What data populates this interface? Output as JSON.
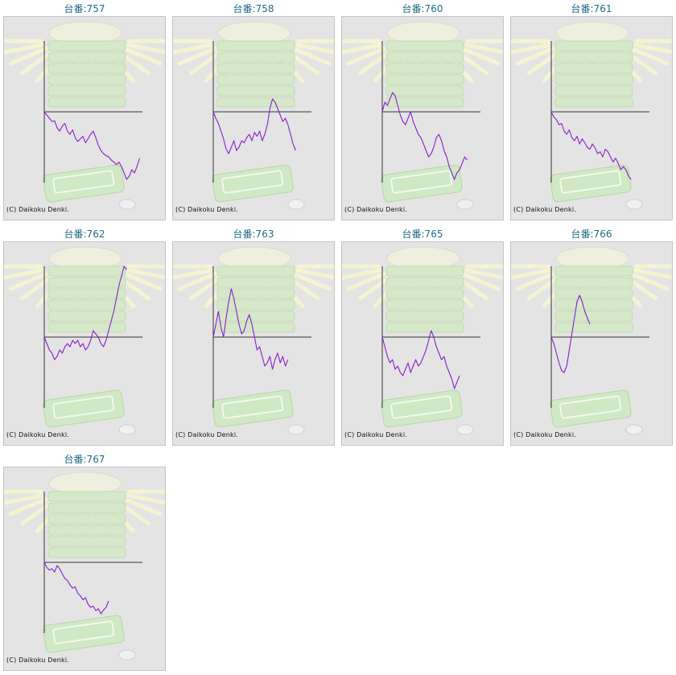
{
  "colors": {
    "line": "#8a1fd0",
    "axis": "#333333",
    "title": "#1f6a8a",
    "frame_bg": "#e4e4e4"
  },
  "copyright": "(C) Daikoku Denki.",
  "chart_data": [
    {
      "type": "line",
      "title": "台番:757",
      "series": [
        {
          "values": [
            0,
            -5,
            -10,
            -15,
            -14,
            -25,
            -30,
            -22,
            -18,
            -30,
            -35,
            -28,
            -40,
            -46,
            -42,
            -38,
            -48,
            -42,
            -35,
            -30,
            -40,
            -52,
            -60,
            -65,
            -68,
            -70,
            -75,
            -78,
            -82,
            -78,
            -85,
            -95,
            -105,
            -100,
            -90,
            -95,
            -85,
            -72
          ]
        }
      ]
    },
    {
      "type": "line",
      "title": "台番:758",
      "series": [
        {
          "values": [
            0,
            -10,
            -18,
            -30,
            -42,
            -58,
            -65,
            -55,
            -45,
            -60,
            -55,
            -45,
            -48,
            -40,
            -35,
            -45,
            -32,
            -38,
            -30,
            -45,
            -35,
            -20,
            5,
            20,
            15,
            5,
            -5,
            -15,
            -10,
            -20,
            -35,
            -50,
            -60
          ]
        }
      ]
    },
    {
      "type": "line",
      "title": "台番:760",
      "series": [
        {
          "values": [
            0,
            15,
            10,
            20,
            30,
            25,
            10,
            -5,
            -15,
            -20,
            -10,
            0,
            -15,
            -25,
            -35,
            -40,
            -50,
            -60,
            -70,
            -65,
            -55,
            -40,
            -35,
            -45,
            -60,
            -70,
            -85,
            -95,
            -105,
            -95,
            -90,
            -80,
            -70,
            -75
          ]
        }
      ]
    },
    {
      "type": "line",
      "title": "台番:761",
      "series": [
        {
          "values": [
            0,
            -8,
            -12,
            -20,
            -18,
            -30,
            -35,
            -28,
            -40,
            -45,
            -38,
            -50,
            -42,
            -48,
            -55,
            -58,
            -50,
            -56,
            -65,
            -62,
            -70,
            -58,
            -62,
            -70,
            -78,
            -72,
            -80,
            -90,
            -85,
            -90,
            -100,
            -105
          ]
        }
      ]
    },
    {
      "type": "line",
      "title": "台番:762",
      "series": [
        {
          "values": [
            0,
            -10,
            -20,
            -25,
            -35,
            -30,
            -20,
            -25,
            -15,
            -10,
            -15,
            -5,
            -10,
            -5,
            -15,
            -10,
            -20,
            -15,
            -5,
            10,
            5,
            0,
            -10,
            -15,
            -5,
            10,
            25,
            40,
            60,
            80,
            95,
            110,
            105
          ]
        }
      ]
    },
    {
      "type": "line",
      "title": "台番:763",
      "series": [
        {
          "values": [
            0,
            20,
            40,
            15,
            0,
            30,
            55,
            75,
            60,
            40,
            20,
            5,
            10,
            25,
            35,
            20,
            0,
            -20,
            -15,
            -30,
            -45,
            -40,
            -30,
            -50,
            -35,
            -25,
            -40,
            -30,
            -45,
            -35
          ]
        }
      ]
    },
    {
      "type": "line",
      "title": "台番:765",
      "series": [
        {
          "values": [
            0,
            -15,
            -30,
            -40,
            -35,
            -50,
            -45,
            -55,
            -60,
            -50,
            -40,
            -55,
            -45,
            -35,
            -45,
            -40,
            -30,
            -20,
            -5,
            10,
            0,
            -15,
            -25,
            -35,
            -30,
            -45,
            -55,
            -65,
            -80,
            -70,
            -60
          ]
        }
      ]
    },
    {
      "type": "line",
      "title": "台番:766",
      "series": [
        {
          "values": [
            0,
            -10,
            -25,
            -40,
            -52,
            -55,
            -45,
            -20,
            5,
            30,
            55,
            65,
            55,
            40,
            30,
            20
          ]
        }
      ]
    },
    {
      "type": "line",
      "title": "台番:767",
      "series": [
        {
          "values": [
            0,
            -8,
            -12,
            -10,
            -15,
            -5,
            -10,
            -18,
            -25,
            -28,
            -35,
            -40,
            -38,
            -48,
            -52,
            -58,
            -55,
            -65,
            -70,
            -68,
            -75,
            -72,
            -80,
            -74,
            -70,
            -60
          ]
        }
      ]
    }
  ]
}
